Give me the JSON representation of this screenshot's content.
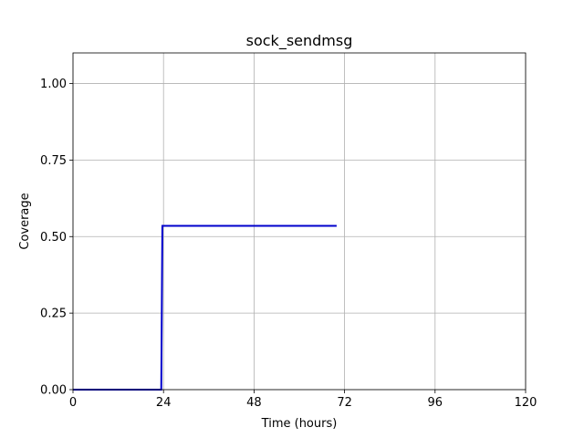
{
  "chart_data": {
    "type": "line",
    "title": "sock_sendmsg",
    "xlabel": "Time (hours)",
    "ylabel": "Coverage",
    "xlim": [
      0,
      120
    ],
    "ylim": [
      0,
      1.1
    ],
    "xticks": [
      0,
      24,
      48,
      72,
      96,
      120
    ],
    "yticks": [
      0.0,
      0.25,
      0.5,
      0.75,
      1.0
    ],
    "xtick_labels": [
      "0",
      "24",
      "48",
      "72",
      "96",
      "120"
    ],
    "ytick_labels": [
      "0.00",
      "0.25",
      "0.50",
      "0.75",
      "1.00"
    ],
    "grid": true,
    "series": [
      {
        "color": "#0000cc",
        "x": [
          0,
          23.4,
          23.7,
          69.9
        ],
        "y": [
          0.0,
          0.0,
          0.535,
          0.535
        ]
      }
    ]
  }
}
